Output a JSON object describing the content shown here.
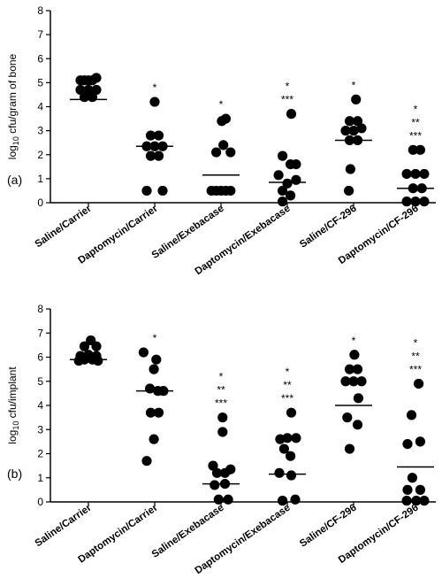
{
  "chart_data": [
    {
      "type": "scatter",
      "panel_label": "(a)",
      "ylabel_main": "log",
      "ylabel_sub": "10",
      "ylabel_rest": " cfu/gram of bone",
      "ylim": [
        0,
        8
      ],
      "yticks": [
        "0",
        "1",
        "2",
        "3",
        "4",
        "5",
        "6",
        "7",
        "8"
      ],
      "categories": [
        "Saline/Carrier",
        "Daptomycin/Carrier",
        "Saline/Exebacase",
        "Daptomycin/Exebacase",
        "Saline/CF-296",
        "Daptomycin/CF-296"
      ],
      "groups": [
        {
          "points": [
            [
              -1,
              5.1
            ],
            [
              -0.5,
              5.1
            ],
            [
              0,
              5.1
            ],
            [
              0.5,
              5.1
            ],
            [
              1,
              5.2
            ],
            [
              -1,
              4.7
            ],
            [
              0,
              4.7
            ],
            [
              1,
              4.7
            ],
            [
              -0.5,
              4.4
            ],
            [
              0.5,
              4.4
            ]
          ],
          "median": 4.3,
          "sig": []
        },
        {
          "points": [
            [
              0,
              4.2
            ],
            [
              -0.5,
              2.8
            ],
            [
              0.5,
              2.8
            ],
            [
              -1,
              2.35
            ],
            [
              0,
              2.35
            ],
            [
              1,
              2.35
            ],
            [
              -0.5,
              1.95
            ],
            [
              0.5,
              1.95
            ],
            [
              -1,
              0.5
            ],
            [
              1,
              0.5
            ]
          ],
          "median": 2.35,
          "sig": [
            "*"
          ]
        },
        {
          "points": [
            [
              0.6,
              3.5
            ],
            [
              0.1,
              3.4
            ],
            [
              0.3,
              2.4
            ],
            [
              -0.6,
              2.1
            ],
            [
              -1.2,
              0.5
            ],
            [
              -0.6,
              0.5
            ],
            [
              0,
              0.5
            ],
            [
              0.6,
              0.5
            ],
            [
              1.2,
              0.5
            ],
            [
              1.2,
              2.1
            ]
          ],
          "median": 1.15,
          "sig": [
            "*"
          ]
        },
        {
          "points": [
            [
              0.5,
              3.7
            ],
            [
              -0.6,
              1.95
            ],
            [
              0.4,
              1.6
            ],
            [
              1.1,
              1.6
            ],
            [
              -1.1,
              1.15
            ],
            [
              1.1,
              0.95
            ],
            [
              0,
              0.8
            ],
            [
              -0.6,
              0.5
            ],
            [
              0.4,
              0.3
            ],
            [
              -0.6,
              0.05
            ]
          ],
          "median": 0.85,
          "sig": [
            "*",
            "***"
          ]
        },
        {
          "points": [
            [
              0.3,
              4.3
            ],
            [
              -0.5,
              3.4
            ],
            [
              0.5,
              3.4
            ],
            [
              -1,
              3.0
            ],
            [
              0,
              3.0
            ],
            [
              1,
              3.1
            ],
            [
              -0.5,
              2.6
            ],
            [
              0.5,
              2.6
            ],
            [
              -0.4,
              1.4
            ],
            [
              -0.6,
              0.5
            ]
          ],
          "median": 2.6,
          "sig": [
            "*"
          ]
        },
        {
          "points": [
            [
              -0.3,
              2.2
            ],
            [
              0.6,
              2.2
            ],
            [
              -1.1,
              1.2
            ],
            [
              0,
              1.2
            ],
            [
              1.1,
              1.2
            ],
            [
              -0.3,
              0.6
            ],
            [
              0.8,
              0.6
            ],
            [
              -1.1,
              0.05
            ],
            [
              0,
              0.05
            ],
            [
              1.1,
              0.05
            ]
          ],
          "median": 0.6,
          "sig": [
            "*",
            "**",
            "***"
          ]
        }
      ]
    },
    {
      "type": "scatter",
      "panel_label": "(b)",
      "ylabel_main": "log",
      "ylabel_sub": "10",
      "ylabel_rest": " cfu/implant",
      "ylim": [
        0,
        8
      ],
      "yticks": [
        "0",
        "1",
        "2",
        "3",
        "4",
        "5",
        "6",
        "7",
        "8"
      ],
      "categories": [
        "Saline/Carrier",
        "Daptomycin/Carrier",
        "Saline/Exebacase",
        "Daptomycin/Exebacase",
        "Saline/CF-296",
        "Daptomycin/CF-296"
      ],
      "groups": [
        {
          "points": [
            [
              0.3,
              6.7
            ],
            [
              -0.5,
              6.45
            ],
            [
              1.0,
              6.45
            ],
            [
              -1,
              6.05
            ],
            [
              0,
              6.1
            ],
            [
              1,
              6.05
            ],
            [
              -1.2,
              5.85
            ],
            [
              -0.5,
              5.9
            ],
            [
              0.5,
              5.9
            ],
            [
              1.2,
              5.85
            ]
          ],
          "median": 5.9,
          "sig": []
        },
        {
          "points": [
            [
              -1.4,
              6.2
            ],
            [
              0.2,
              5.9
            ],
            [
              -0.1,
              5.5
            ],
            [
              -0.6,
              4.7
            ],
            [
              0.4,
              4.6
            ],
            [
              1.1,
              4.6
            ],
            [
              -0.5,
              3.7
            ],
            [
              0.5,
              3.7
            ],
            [
              -0.1,
              2.6
            ],
            [
              -1.0,
              1.7
            ]
          ],
          "median": 4.6,
          "sig": [
            "*"
          ]
        },
        {
          "points": [
            [
              0.2,
              3.5
            ],
            [
              0.2,
              2.9
            ],
            [
              -1.0,
              1.5
            ],
            [
              -0.5,
              1.2
            ],
            [
              0.5,
              1.2
            ],
            [
              1.2,
              1.35
            ],
            [
              -0.8,
              0.7
            ],
            [
              0.5,
              0.75
            ],
            [
              -0.3,
              0.1
            ],
            [
              0.9,
              0.1
            ]
          ],
          "median": 0.75,
          "sig": [
            "*",
            "**",
            "***"
          ]
        },
        {
          "points": [
            [
              0.5,
              3.7
            ],
            [
              -0.9,
              2.6
            ],
            [
              0.0,
              2.65
            ],
            [
              1.1,
              2.65
            ],
            [
              -0.4,
              2.2
            ],
            [
              0.4,
              1.9
            ],
            [
              -1.0,
              1.2
            ],
            [
              0.5,
              1.1
            ],
            [
              -0.6,
              0.05
            ],
            [
              1.0,
              0.1
            ]
          ],
          "median": 1.15,
          "sig": [
            "*",
            "**",
            "***"
          ]
        },
        {
          "points": [
            [
              0.1,
              6.1
            ],
            [
              -0.5,
              5.5
            ],
            [
              0.5,
              5.5
            ],
            [
              -1,
              5.0
            ],
            [
              0,
              5.0
            ],
            [
              1,
              5.0
            ],
            [
              0.6,
              4.3
            ],
            [
              -0.8,
              3.5
            ],
            [
              0.5,
              3.2
            ],
            [
              -0.5,
              2.2
            ]
          ],
          "median": 4.0,
          "sig": [
            "*"
          ]
        },
        {
          "points": [
            [
              0.4,
              4.9
            ],
            [
              -0.5,
              3.6
            ],
            [
              -1.0,
              2.4
            ],
            [
              0.6,
              2.5
            ],
            [
              -0.4,
              1.0
            ],
            [
              0.6,
              0.5
            ],
            [
              -1.0,
              0.5
            ],
            [
              -1.1,
              0.05
            ],
            [
              0.1,
              0.05
            ],
            [
              1.1,
              0.05
            ]
          ],
          "median": 1.45,
          "sig": [
            "*",
            "**",
            "***"
          ]
        }
      ]
    }
  ]
}
